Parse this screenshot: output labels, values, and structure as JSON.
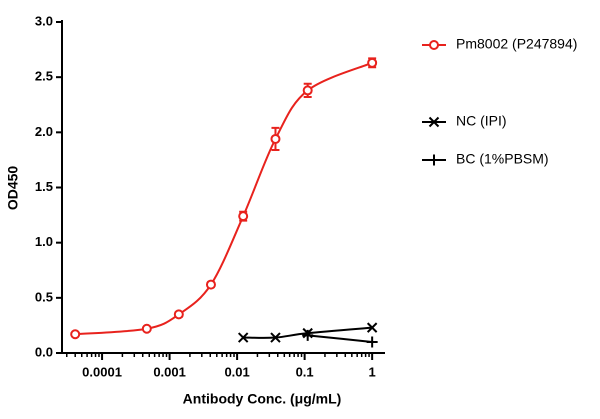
{
  "chart_data": {
    "type": "line",
    "x_label": "Antibody Conc. (μg/mL)",
    "y_label": "OD450",
    "xscale": "log",
    "xlim": [
      2.55e-05,
      1.55
    ],
    "xticks": [
      0.0001,
      0.001,
      0.01,
      0.1,
      1
    ],
    "ylim": [
      0,
      3
    ],
    "yticks": [
      {
        "value": 0,
        "label": "0.0"
      },
      0.5,
      {
        "value": 1,
        "label": "1.0"
      },
      1.5,
      {
        "value": 2,
        "label": "2.0"
      },
      2.5,
      {
        "value": 3,
        "label": "3.0"
      }
    ],
    "legend": "right",
    "series": [
      {
        "name": "Pm8002 (P247894)",
        "color": "#e8221d",
        "marker": "circle",
        "x": [
          4e-05,
          0.00046,
          0.00137,
          0.0041,
          0.0123,
          0.037,
          0.111,
          1
        ],
        "values": [
          0.17,
          0.22,
          0.35,
          0.62,
          1.24,
          1.94,
          2.38,
          2.63
        ],
        "errors": [
          0.01,
          0.01,
          0.02,
          0.02,
          0.04,
          0.1,
          0.06,
          0.04
        ]
      },
      {
        "name": "NC (IPI)",
        "color": "#000000",
        "marker": "x",
        "x": [
          0.0123,
          0.037,
          0.111,
          1
        ],
        "values": [
          0.14,
          0.14,
          0.18,
          0.23
        ]
      },
      {
        "name": "BC (1%PBSM)",
        "color": "#000000",
        "marker": "plus",
        "x": [
          0.111,
          1
        ],
        "values": [
          0.16,
          0.1
        ]
      }
    ]
  }
}
